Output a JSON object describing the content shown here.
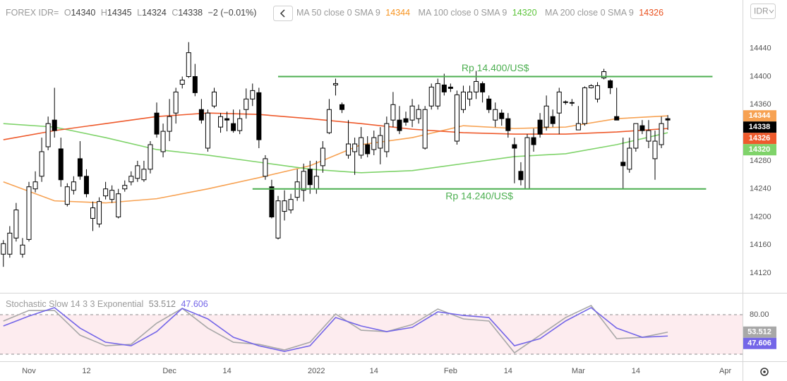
{
  "chart_data": [
    {
      "type": "candlestick",
      "title": "FOREX IDR=",
      "ohlc_labels": [
        "O",
        "H",
        "L",
        "C"
      ],
      "change": "−2 (−0.01%)",
      "currency": "IDR",
      "x": [
        0,
        1,
        2,
        3,
        4,
        5,
        6,
        7,
        8,
        9,
        10,
        11,
        12,
        13,
        14,
        15,
        16,
        17,
        18,
        19,
        20,
        21,
        22,
        23,
        24,
        25,
        26,
        27,
        28,
        29,
        30,
        31,
        32,
        33,
        34,
        35,
        36,
        37,
        38,
        39,
        40,
        41,
        42,
        43,
        44,
        45,
        46,
        47,
        48,
        49,
        50,
        51,
        52,
        53,
        54,
        55,
        56,
        57,
        58,
        59,
        60,
        61,
        62,
        63,
        64,
        65,
        66,
        67,
        68,
        69,
        70,
        71,
        72,
        73,
        74,
        75,
        76,
        77,
        78,
        79,
        80,
        81,
        82,
        83,
        84,
        85,
        86,
        87,
        88,
        89,
        90,
        91,
        92,
        93,
        94,
        95,
        96,
        97,
        98,
        99,
        100,
        101,
        102,
        103,
        104
      ],
      "open": [
        14147,
        14147,
        14170,
        14147,
        14168,
        14240,
        14258,
        14300,
        14338,
        14297,
        14218,
        14238,
        14283,
        14258,
        14198,
        14190,
        14230,
        14225,
        14200,
        14240,
        14250,
        14255,
        14253,
        14268,
        14348,
        14293,
        14322,
        14348,
        14389,
        14400,
        14400,
        14353,
        14298,
        14358,
        14328,
        14340,
        14333,
        14323,
        14353,
        14368,
        14377,
        14258,
        14243,
        14170,
        14208,
        14210,
        14228,
        14238,
        14268,
        14240,
        14273,
        14320,
        14388,
        14360,
        14288,
        14293,
        14288,
        14303,
        14296,
        14298,
        14293,
        14338,
        14338,
        14340,
        14338,
        14340,
        14298,
        14358,
        14358,
        14388,
        14385,
        14308,
        14353,
        14368,
        14378,
        14390,
        14368,
        14338,
        14348,
        14340,
        14303,
        14265,
        14240,
        14313,
        14338,
        14328,
        14343,
        14348,
        14363,
        14363,
        14324,
        14333,
        14384,
        14368,
        14398,
        14394,
        14343,
        14278,
        14268,
        14298,
        14330,
        14308,
        14283,
        14303,
        14340
      ],
      "high": [
        14167,
        14187,
        14220,
        14170,
        14250,
        14265,
        14313,
        14343,
        14384,
        14313,
        14248,
        14258,
        14308,
        14268,
        14222,
        14228,
        14250,
        14245,
        14240,
        14252,
        14265,
        14280,
        14280,
        14308,
        14363,
        14333,
        14368,
        14384,
        14400,
        14449,
        14418,
        14368,
        14353,
        14384,
        14348,
        14350,
        14353,
        14353,
        14383,
        14390,
        14384,
        14288,
        14253,
        14230,
        14238,
        14233,
        14268,
        14276,
        14280,
        14280,
        14308,
        14368,
        14397,
        14363,
        14338,
        14313,
        14328,
        14315,
        14323,
        14328,
        14343,
        14378,
        14358,
        14350,
        14368,
        14360,
        14358,
        14390,
        14397,
        14404,
        14390,
        14380,
        14387,
        14387,
        14408,
        14393,
        14373,
        14363,
        14353,
        14348,
        14313,
        14278,
        14318,
        14326,
        14348,
        14373,
        14353,
        14384,
        14366,
        14368,
        14358,
        14386,
        14389,
        14392,
        14411,
        14396,
        14384,
        14313,
        14313,
        14333,
        14338,
        14338,
        14323,
        14343,
        14345
      ],
      "low": [
        14129,
        14142,
        14165,
        14142,
        14165,
        14235,
        14250,
        14295,
        14313,
        14243,
        14215,
        14232,
        14253,
        14228,
        14180,
        14185,
        14225,
        14220,
        14198,
        14236,
        14245,
        14250,
        14250,
        14262,
        14313,
        14285,
        14308,
        14333,
        14383,
        14398,
        14372,
        14333,
        14293,
        14355,
        14320,
        14322,
        14320,
        14318,
        14340,
        14358,
        14298,
        14253,
        14198,
        14168,
        14195,
        14205,
        14223,
        14222,
        14233,
        14233,
        14263,
        14318,
        14373,
        14348,
        14283,
        14260,
        14283,
        14285,
        14288,
        14275,
        14285,
        14328,
        14318,
        14330,
        14328,
        14333,
        14296,
        14353,
        14353,
        14373,
        14378,
        14303,
        14348,
        14358,
        14368,
        14363,
        14348,
        14328,
        14330,
        14313,
        14248,
        14245,
        14240,
        14293,
        14313,
        14323,
        14328,
        14318,
        14360,
        14358,
        14324,
        14330,
        14383,
        14363,
        14396,
        14375,
        14338,
        14240,
        14263,
        14293,
        14318,
        14298,
        14253,
        14298,
        14324
      ],
      "close": [
        14162,
        14177,
        14210,
        14160,
        14243,
        14250,
        14293,
        14333,
        14323,
        14253,
        14243,
        14250,
        14258,
        14233,
        14213,
        14222,
        14240,
        14238,
        14233,
        14245,
        14258,
        14273,
        14268,
        14303,
        14318,
        14322,
        14343,
        14378,
        14395,
        14434,
        14377,
        14338,
        14348,
        14378,
        14343,
        14338,
        14323,
        14340,
        14368,
        14380,
        14310,
        14283,
        14200,
        14223,
        14223,
        14225,
        14250,
        14265,
        14246,
        14258,
        14298,
        14353,
        14390,
        14353,
        14304,
        14304,
        14313,
        14290,
        14313,
        14316,
        14333,
        14360,
        14323,
        14335,
        14358,
        14353,
        14353,
        14385,
        14390,
        14378,
        14383,
        14374,
        14378,
        14378,
        14393,
        14378,
        14353,
        14353,
        14340,
        14323,
        14298,
        14253,
        14313,
        14303,
        14318,
        14358,
        14333,
        14378,
        14364,
        14362,
        14333,
        14384,
        14387,
        14387,
        14407,
        14384,
        14338,
        14273,
        14298,
        14333,
        14323,
        14323,
        14308,
        14333,
        14338
      ],
      "up_color": "#ffffff",
      "down_color": "#000000",
      "xlim": [
        -0.53,
        115.7
      ],
      "ylim": [
        14092,
        14509
      ],
      "yticks": [
        14120,
        14160,
        14200,
        14240,
        14280,
        14320,
        14360,
        14400,
        14440
      ],
      "grid": false,
      "series": [
        {
          "name": "MA 50 close 0 SMA 9",
          "color": "#f7a253",
          "x": [
            0,
            8,
            16,
            24,
            32,
            40,
            48,
            56,
            64,
            72,
            80,
            88,
            96,
            104
          ],
          "values": [
            14250,
            14223,
            14220,
            14226,
            14240,
            14256,
            14273,
            14303,
            14313,
            14330,
            14326,
            14328,
            14340,
            14344
          ]
        },
        {
          "name": "MA 100 close 0 SMA 9",
          "color": "#7fd36a",
          "x": [
            0,
            8,
            16,
            24,
            32,
            40,
            48,
            56,
            64,
            72,
            80,
            88,
            96,
            104
          ],
          "values": [
            14333,
            14328,
            14313,
            14296,
            14288,
            14278,
            14268,
            14263,
            14266,
            14276,
            14286,
            14290,
            14303,
            14320
          ]
        },
        {
          "name": "MA 200 close 0 SMA 9",
          "color": "#ee5a2c",
          "x": [
            0,
            8,
            16,
            24,
            32,
            40,
            48,
            56,
            64,
            72,
            80,
            88,
            96,
            104
          ],
          "values": [
            14310,
            14323,
            14333,
            14343,
            14348,
            14346,
            14340,
            14333,
            14325,
            14320,
            14318,
            14318,
            14321,
            14326
          ]
        }
      ],
      "annotations": [
        {
          "text": "Rp 14.400/US$",
          "y": 14400,
          "x_start": 43,
          "x_end": 111,
          "label_position": "above",
          "color": "#4caf50"
        },
        {
          "text": "Rp 14.240/US$",
          "y": 14240,
          "x_start": 39,
          "x_end": 110,
          "label_position": "below",
          "color": "#4caf50"
        }
      ]
    },
    {
      "type": "line",
      "title": "Stochastic Slow 14 3 3 Exponential",
      "x": [
        0,
        4,
        8,
        12,
        16,
        20,
        24,
        28,
        32,
        36,
        40,
        44,
        48,
        52,
        56,
        60,
        64,
        68,
        72,
        76,
        80,
        84,
        88,
        92,
        96,
        100,
        104
      ],
      "series": [
        {
          "name": "%K",
          "color": "#a8a8a8",
          "values": [
            70.4,
            86.4,
            86.4,
            48.9,
            32.8,
            35.0,
            67.1,
            89.6,
            59.6,
            38.2,
            35.0,
            26.4,
            38.2,
            81.1,
            56.4,
            54.3,
            65.0,
            88.6,
            73.6,
            70.4,
            22.1,
            48.9,
            75.7,
            93.9,
            43.6,
            45.7,
            53.512
          ]
        },
        {
          "name": "%D",
          "color": "#7466e8",
          "values": [
            62.9,
            77.9,
            90.7,
            59.6,
            38.2,
            32.8,
            54.3,
            89.6,
            73.6,
            45.7,
            32.8,
            24.3,
            32.8,
            75.7,
            62.9,
            54.3,
            60.7,
            84.3,
            78.9,
            75.7,
            32.8,
            43.6,
            70.4,
            90.7,
            59.6,
            45.7,
            47.606
          ]
        }
      ],
      "xlim": [
        -0.53,
        115.7
      ],
      "xticks": [
        {
          "value": 4,
          "label": "Nov"
        },
        {
          "value": 13,
          "label": "12"
        },
        {
          "value": 26,
          "label": "Dec"
        },
        {
          "value": 35,
          "label": "14"
        },
        {
          "value": 49,
          "label": "2022"
        },
        {
          "value": 58,
          "label": "14"
        },
        {
          "value": 70,
          "label": "Feb"
        },
        {
          "value": 79,
          "label": "14"
        },
        {
          "value": 90,
          "label": "Mar"
        },
        {
          "value": 99,
          "label": "14"
        },
        {
          "value": 113,
          "label": "Apr"
        }
      ],
      "ylim": [
        9.3,
        111.1
      ],
      "yticks": [
        {
          "value": 80,
          "label": "80.00"
        }
      ],
      "levels": [
        20,
        80
      ],
      "band_color": "#fdecef"
    }
  ]
}
